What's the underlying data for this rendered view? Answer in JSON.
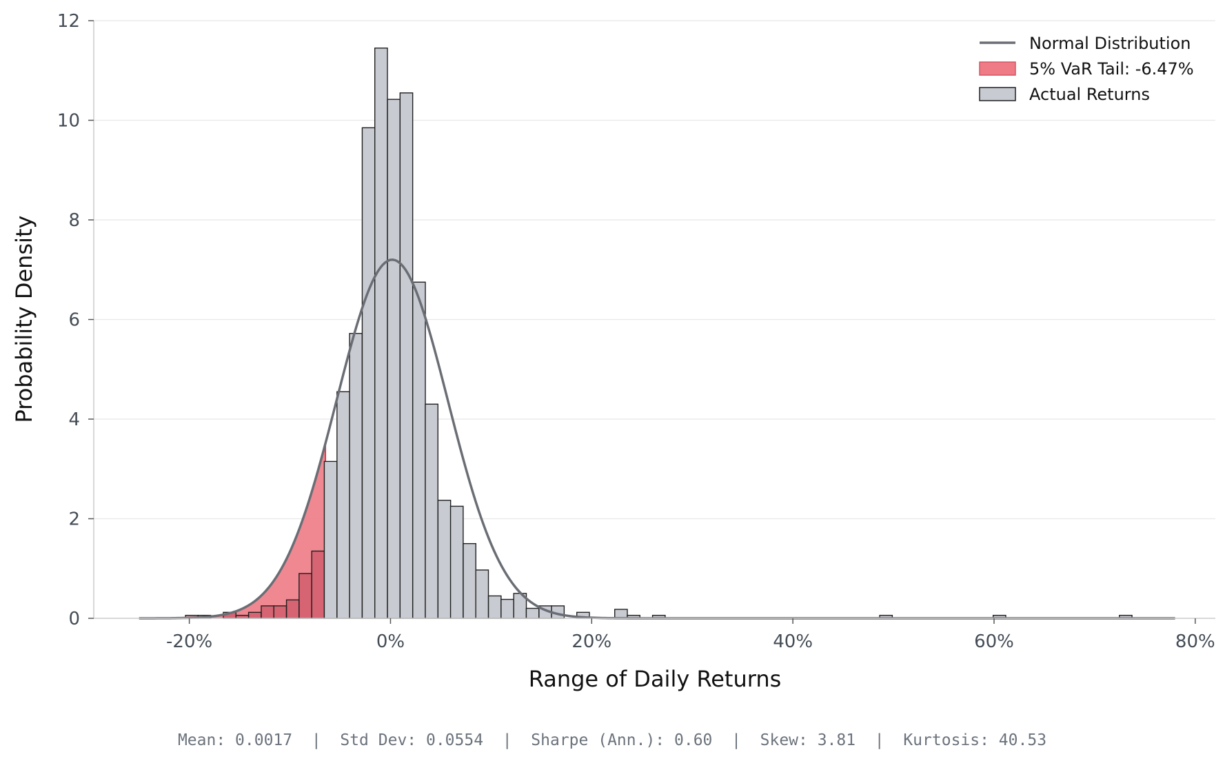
{
  "chart_data": {
    "type": "histogram",
    "xlabel": "Range of Daily Returns",
    "ylabel": "Probability Density",
    "xlim": [
      -0.295,
      0.82
    ],
    "ylim": [
      0,
      12
    ],
    "x_ticks": [
      -0.2,
      0,
      0.2,
      0.4,
      0.6,
      0.8
    ],
    "x_tick_labels": [
      "-20%",
      "0%",
      "20%",
      "40%",
      "60%",
      "80%"
    ],
    "y_ticks": [
      0,
      2,
      4,
      6,
      8,
      10,
      12
    ],
    "y_tick_labels": [
      "0",
      "2",
      "4",
      "6",
      "8",
      "10",
      "12"
    ],
    "grid": "horizontal",
    "legend_position": "top-right",
    "legend": [
      {
        "label": "Normal Distribution",
        "kind": "line"
      },
      {
        "label": "5% VaR Tail: -6.47%",
        "kind": "patch-red"
      },
      {
        "label": "Actual Returns",
        "kind": "patch-grey"
      }
    ],
    "bin_width": 0.01255,
    "var_threshold": -0.0647,
    "histogram_bins": [
      {
        "x0": -0.2038,
        "density": 0.06
      },
      {
        "x0": -0.1913,
        "density": 0.06
      },
      {
        "x0": -0.1787,
        "density": 0.0
      },
      {
        "x0": -0.1662,
        "density": 0.12
      },
      {
        "x0": -0.1536,
        "density": 0.06
      },
      {
        "x0": -0.1411,
        "density": 0.12
      },
      {
        "x0": -0.1285,
        "density": 0.25
      },
      {
        "x0": -0.116,
        "density": 0.25
      },
      {
        "x0": -0.1034,
        "density": 0.37
      },
      {
        "x0": -0.0909,
        "density": 0.9
      },
      {
        "x0": -0.0783,
        "density": 1.35
      },
      {
        "x0": -0.0658,
        "density": 3.15
      },
      {
        "x0": -0.0532,
        "density": 4.55
      },
      {
        "x0": -0.0407,
        "density": 5.72
      },
      {
        "x0": -0.0281,
        "density": 9.85
      },
      {
        "x0": -0.0156,
        "density": 11.45
      },
      {
        "x0": -0.003,
        "density": 10.42
      },
      {
        "x0": 0.0095,
        "density": 10.55
      },
      {
        "x0": 0.0221,
        "density": 6.75
      },
      {
        "x0": 0.0346,
        "density": 4.3
      },
      {
        "x0": 0.0472,
        "density": 2.37
      },
      {
        "x0": 0.0597,
        "density": 2.25
      },
      {
        "x0": 0.0723,
        "density": 1.5
      },
      {
        "x0": 0.0848,
        "density": 0.97
      },
      {
        "x0": 0.0974,
        "density": 0.45
      },
      {
        "x0": 0.1099,
        "density": 0.38
      },
      {
        "x0": 0.1225,
        "density": 0.5
      },
      {
        "x0": 0.135,
        "density": 0.2
      },
      {
        "x0": 0.1476,
        "density": 0.25
      },
      {
        "x0": 0.1601,
        "density": 0.25
      },
      {
        "x0": 0.1727,
        "density": 0.0
      },
      {
        "x0": 0.1852,
        "density": 0.12
      },
      {
        "x0": 0.1978,
        "density": 0.0
      },
      {
        "x0": 0.2103,
        "density": 0.0
      },
      {
        "x0": 0.2229,
        "density": 0.18
      },
      {
        "x0": 0.2354,
        "density": 0.06
      },
      {
        "x0": 0.248,
        "density": 0.0
      },
      {
        "x0": 0.2605,
        "density": 0.06
      },
      {
        "x0": 0.4863,
        "density": 0.06
      },
      {
        "x0": 0.5991,
        "density": 0.06
      },
      {
        "x0": 0.7246,
        "density": 0.06
      }
    ],
    "normal_fit": {
      "mean": 0.0017,
      "std": 0.0554,
      "x_range": [
        -0.25,
        0.78
      ]
    },
    "stats_footer": "Mean: 0.0017  |  Std Dev: 0.0554  |  Sharpe (Ann.): 0.60  |  Skew: 3.81  |  Kurtosis: 40.53"
  },
  "colors": {
    "bar_fill": "#c8cbd1",
    "bar_edge": "#1f1f1f",
    "tail_fill": "#ee7b86",
    "tail_bar_fill": "#b83a4c",
    "normal_line": "#6a6e74",
    "grid": "#e8e8e8",
    "spine": "#cccccc",
    "tick_text": "#444c55",
    "stats_text": "#6c737c"
  }
}
